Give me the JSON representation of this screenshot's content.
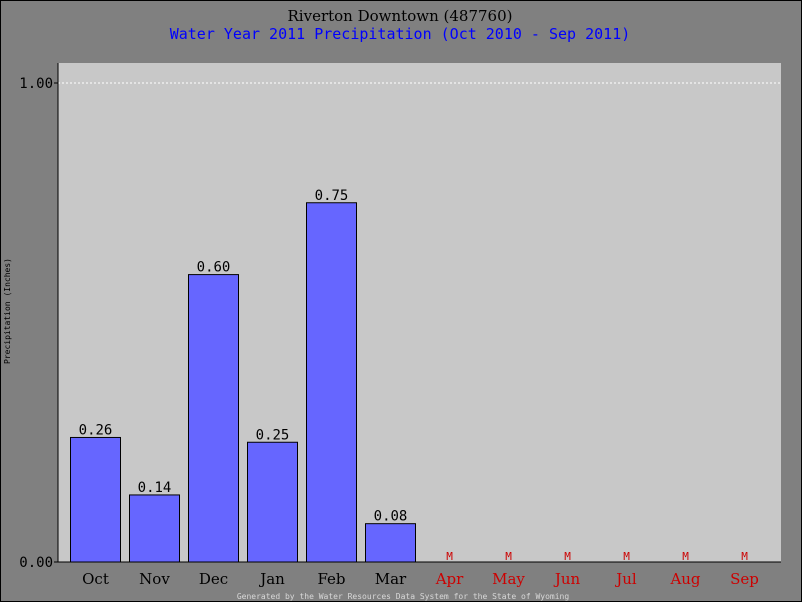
{
  "colors": {
    "background": "#808080",
    "plot_area": "#c8c8c8",
    "bar_fill": "#6666ff",
    "bar_stroke": "#000000",
    "missing": "#cc0000",
    "title": "#000000",
    "subtitle": "#0000ff",
    "grid": "#ffffff",
    "footer": "#d8d8d8"
  },
  "chart_data": {
    "type": "bar",
    "title": "Riverton Downtown (487760)",
    "subtitle": "Water Year 2011 Precipitation (Oct 2010 - Sep 2011)",
    "xlabel": "",
    "ylabel": "Precipitation (Inches)",
    "ylim": [
      0,
      1.0
    ],
    "ytick_labels": [
      "0.00",
      "1.00"
    ],
    "grid": "dotted line at 1.00",
    "legend": "none",
    "categories": [
      "Oct",
      "Nov",
      "Dec",
      "Jan",
      "Feb",
      "Mar",
      "Apr",
      "May",
      "Jun",
      "Jul",
      "Aug",
      "Sep"
    ],
    "values": [
      0.26,
      0.14,
      0.6,
      0.25,
      0.75,
      0.08,
      null,
      null,
      null,
      null,
      null,
      null
    ],
    "value_labels": [
      "0.26",
      "0.14",
      "0.60",
      "0.25",
      "0.75",
      "0.08",
      "M",
      "M",
      "M",
      "M",
      "M",
      "M"
    ],
    "missing_flag": "M",
    "footer": "Generated by the Water Resources Data System for the State of Wyoming"
  }
}
